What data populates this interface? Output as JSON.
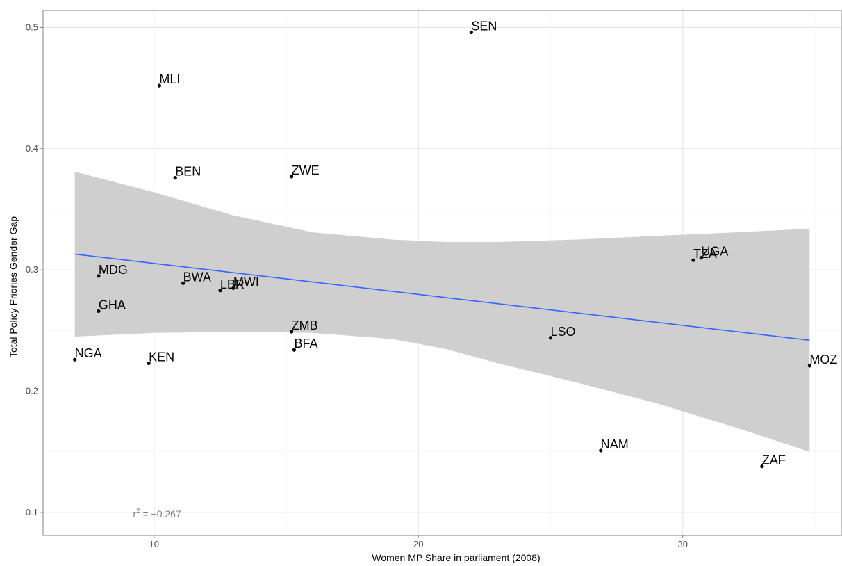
{
  "chart_data": {
    "type": "scatter",
    "xlabel": "Women MP Share in parliament (2008)",
    "ylabel": "Total Policy Priories Gender Gap",
    "xlim": [
      5.8,
      36.0
    ],
    "ylim": [
      0.081,
      0.514
    ],
    "x_ticks": [
      10,
      20,
      30
    ],
    "y_ticks": [
      0.1,
      0.2,
      0.3,
      0.4,
      0.5
    ],
    "x_tick_labels": [
      "10",
      "20",
      "30"
    ],
    "y_tick_labels": [
      "0.1",
      "0.2",
      "0.3",
      "0.4",
      "0.5"
    ],
    "grid": true,
    "points": [
      {
        "label": "SEN",
        "x": 22.0,
        "y": 0.496
      },
      {
        "label": "MLI",
        "x": 10.2,
        "y": 0.452
      },
      {
        "label": "BEN",
        "x": 10.8,
        "y": 0.376
      },
      {
        "label": "ZWE",
        "x": 15.2,
        "y": 0.377
      },
      {
        "label": "TZA",
        "x": 30.4,
        "y": 0.308
      },
      {
        "label": "UGA",
        "x": 30.7,
        "y": 0.31
      },
      {
        "label": "MDG",
        "x": 7.9,
        "y": 0.295
      },
      {
        "label": "BWA",
        "x": 11.1,
        "y": 0.289
      },
      {
        "label": "MWI",
        "x": 13.0,
        "y": 0.285
      },
      {
        "label": "LBR",
        "x": 12.5,
        "y": 0.283
      },
      {
        "label": "GHA",
        "x": 7.9,
        "y": 0.266
      },
      {
        "label": "ZMB",
        "x": 15.2,
        "y": 0.249
      },
      {
        "label": "LSO",
        "x": 25.0,
        "y": 0.244
      },
      {
        "label": "BFA",
        "x": 15.3,
        "y": 0.234
      },
      {
        "label": "NGA",
        "x": 7.0,
        "y": 0.226
      },
      {
        "label": "KEN",
        "x": 9.8,
        "y": 0.223
      },
      {
        "label": "MOZ",
        "x": 34.8,
        "y": 0.221
      },
      {
        "label": "NAM",
        "x": 26.9,
        "y": 0.151
      },
      {
        "label": "ZAF",
        "x": 33.0,
        "y": 0.138
      }
    ],
    "trend_line": {
      "color": "#3366ff",
      "x": [
        7.0,
        34.8
      ],
      "y": [
        0.313,
        0.242
      ]
    },
    "confidence_band": {
      "color": "#cccccc",
      "x": [
        7.0,
        10.0,
        13.0,
        16.0,
        19.0,
        21.0,
        23.0,
        26.0,
        29.0,
        32.0,
        34.8
      ],
      "upper": [
        0.381,
        0.364,
        0.345,
        0.331,
        0.325,
        0.323,
        0.323,
        0.325,
        0.328,
        0.331,
        0.334
      ],
      "lower": [
        0.245,
        0.248,
        0.249,
        0.248,
        0.243,
        0.235,
        0.223,
        0.207,
        0.19,
        0.17,
        0.15
      ]
    },
    "annotation": {
      "prefix": "r",
      "sup": "2",
      "suffix": " = −0.267",
      "x": 9.2,
      "y": 0.096
    }
  }
}
